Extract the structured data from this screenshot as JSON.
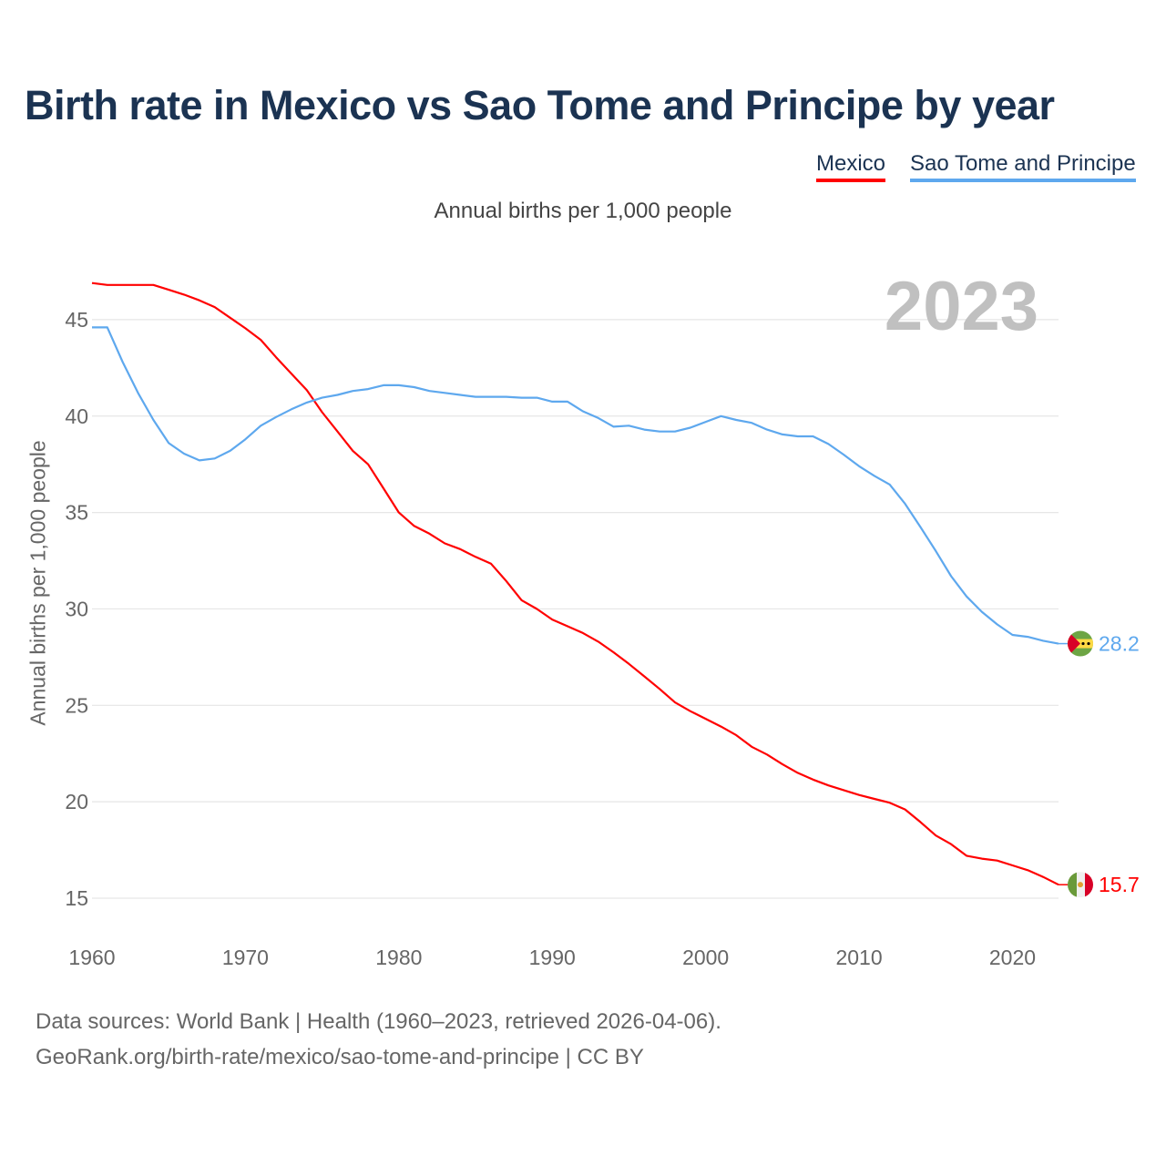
{
  "title": "Birth rate in Mexico vs Sao Tome and Principe by year",
  "legend": [
    "Mexico",
    "Sao Tome and Principe"
  ],
  "subtitle": "Annual births per 1,000 people",
  "year_watermark": "2023",
  "footer": {
    "line1": "Data sources: World Bank | Health (1960–2023, retrieved 2026-04-06).",
    "line2": "GeoRank.org/birth-rate/mexico/sao-tome-and-principe | CC BY"
  },
  "chart_data": {
    "type": "line",
    "title": "Birth rate in Mexico vs Sao Tome and Principe by year",
    "xlabel": "",
    "ylabel": "Annual births per 1,000 people",
    "xlim": [
      1960,
      2023
    ],
    "ylim": [
      13.5,
      47.5
    ],
    "yticks": [
      15,
      20,
      25,
      30,
      35,
      40,
      45
    ],
    "xticks": [
      1960,
      1970,
      1980,
      1990,
      2000,
      2010,
      2020
    ],
    "grid": true,
    "legend_position": "top-right",
    "x_start": 1960,
    "series": [
      {
        "name": "Mexico",
        "color": "#ff0000",
        "end_label": "15.7",
        "flag": "mexico-flag",
        "values": [
          46.9,
          46.8,
          46.8,
          46.8,
          46.8,
          46.55,
          46.3,
          46.0,
          45.65,
          45.1,
          44.55,
          43.95,
          43.05,
          42.2,
          41.35,
          40.2,
          39.2,
          38.2,
          37.5,
          36.25,
          35.0,
          34.3,
          33.9,
          33.4,
          33.1,
          32.7,
          32.35,
          31.45,
          30.45,
          30.0,
          29.45,
          29.1,
          28.75,
          28.3,
          27.75,
          27.15,
          26.5,
          25.85,
          25.15,
          24.7,
          24.3,
          23.9,
          23.45,
          22.85,
          22.45,
          21.95,
          21.5,
          21.15,
          20.85,
          20.6,
          20.35,
          20.15,
          19.95,
          19.6,
          18.95,
          18.25,
          17.8,
          17.2,
          17.05,
          16.95,
          16.7,
          16.45,
          16.1,
          15.7
        ]
      },
      {
        "name": "Sao Tome and Principe",
        "color": "#5ea8ee",
        "end_label": "28.2",
        "flag": "sao-tome-flag",
        "values": [
          44.6,
          44.6,
          42.8,
          41.2,
          39.8,
          38.6,
          38.05,
          37.7,
          37.8,
          38.2,
          38.8,
          39.5,
          39.95,
          40.35,
          40.7,
          40.95,
          41.1,
          41.3,
          41.4,
          41.6,
          41.6,
          41.5,
          41.3,
          41.2,
          41.1,
          41.0,
          41.0,
          41.0,
          40.95,
          40.95,
          40.75,
          40.75,
          40.25,
          39.9,
          39.45,
          39.5,
          39.3,
          39.2,
          39.2,
          39.4,
          39.7,
          40.0,
          39.8,
          39.65,
          39.3,
          39.05,
          38.95,
          38.95,
          38.55,
          38.0,
          37.4,
          36.9,
          36.45,
          35.45,
          34.25,
          33.0,
          31.7,
          30.65,
          29.85,
          29.2,
          28.65,
          28.55,
          28.35,
          28.2
        ]
      }
    ]
  }
}
